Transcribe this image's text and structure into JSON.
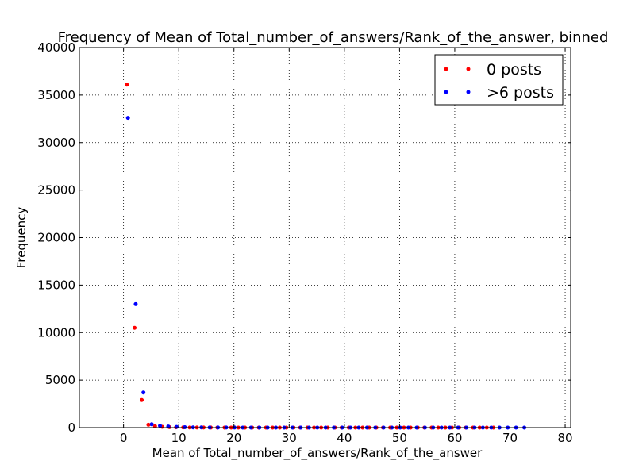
{
  "chart_data": {
    "type": "scatter",
    "title": "Frequency of Mean of Total_number_of_answers/Rank_of_the_answer, binned",
    "xlabel": "Mean of Total_number_of_answers/Rank_of_the_answer",
    "ylabel": "Frequency",
    "xlim": [
      -8,
      81
    ],
    "ylim": [
      0,
      40000
    ],
    "xticks": [
      0,
      10,
      20,
      30,
      40,
      50,
      60,
      70,
      80
    ],
    "yticks": [
      0,
      5000,
      10000,
      15000,
      20000,
      25000,
      30000,
      35000,
      40000
    ],
    "grid": true,
    "legend_position": "top-right",
    "series": [
      {
        "name": "0 posts",
        "color": "#ff0000",
        "x": [
          0.6,
          2.0,
          3.3,
          4.5,
          5.7,
          7.0,
          8.3,
          9.5,
          10.8,
          12.0,
          13.3,
          14.5,
          15.8,
          17.0,
          18.3,
          19.5,
          20.8,
          22.0,
          23.3,
          24.5,
          25.8,
          27.0,
          28.3,
          29.5,
          30.8,
          32.0,
          33.3,
          34.5,
          35.8,
          37.0,
          38.3,
          39.5,
          40.8,
          42.0,
          43.3,
          44.5,
          45.8,
          47.0,
          48.3,
          49.5,
          50.8,
          52.0,
          53.3,
          54.5,
          55.8,
          57.0,
          58.3,
          59.5,
          60.8,
          62.0,
          63.3,
          64.5,
          65.8,
          67.0
        ],
        "y": [
          36100,
          10500,
          2900,
          300,
          150,
          80,
          50,
          30,
          20,
          15,
          10,
          8,
          6,
          5,
          4,
          4,
          3,
          3,
          3,
          2,
          2,
          2,
          2,
          2,
          2,
          1,
          1,
          1,
          1,
          1,
          1,
          1,
          1,
          1,
          1,
          1,
          1,
          1,
          1,
          1,
          1,
          1,
          1,
          1,
          1,
          1,
          1,
          1,
          1,
          1,
          1,
          1,
          1,
          1
        ]
      },
      {
        "name": ">6 posts",
        "color": "#0000ff",
        "x": [
          0.8,
          2.2,
          3.6,
          5.1,
          6.6,
          8.1,
          9.6,
          11.1,
          12.6,
          14.1,
          15.6,
          17.1,
          18.6,
          20.1,
          21.6,
          23.1,
          24.6,
          26.1,
          27.6,
          29.1,
          30.6,
          32.1,
          33.6,
          35.1,
          36.6,
          38.1,
          39.6,
          41.1,
          42.6,
          44.1,
          45.6,
          47.1,
          48.6,
          50.1,
          51.6,
          53.1,
          54.6,
          56.1,
          57.6,
          59.1,
          60.6,
          62.1,
          63.6,
          65.1,
          66.6,
          68.1,
          69.6,
          71.1,
          72.6
        ],
        "y": [
          32600,
          13000,
          3700,
          350,
          200,
          120,
          70,
          40,
          25,
          20,
          15,
          10,
          8,
          6,
          5,
          4,
          4,
          3,
          3,
          3,
          2,
          2,
          2,
          2,
          2,
          2,
          1,
          1,
          1,
          1,
          1,
          1,
          1,
          1,
          1,
          1,
          1,
          1,
          1,
          1,
          1,
          1,
          1,
          1,
          1,
          1,
          1,
          1,
          1
        ]
      }
    ]
  }
}
